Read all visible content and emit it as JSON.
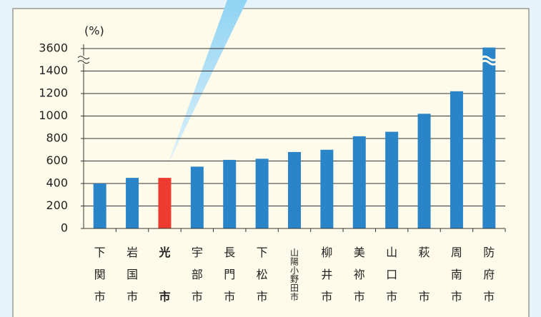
{
  "chart_data": {
    "type": "bar",
    "y_unit": "(%)",
    "categories": [
      "下関市",
      "岩国市",
      "光市",
      "宇部市",
      "長門市",
      "下松市",
      "山陽小野田市",
      "柳井市",
      "美祢市",
      "山口市",
      "萩市",
      "周南市",
      "防府市"
    ],
    "values": [
      400,
      450,
      450,
      550,
      610,
      620,
      680,
      700,
      820,
      860,
      1020,
      1220,
      3700
    ],
    "color": "#2a85c8",
    "colors": [
      "#2a85c8",
      "#2a85c8",
      "#ee3b2f",
      "#2a85c8",
      "#2a85c8",
      "#2a85c8",
      "#2a85c8",
      "#2a85c8",
      "#2a85c8",
      "#2a85c8",
      "#2a85c8",
      "#2a85c8",
      "#2a85c8"
    ],
    "ylim": [
      0,
      3600
    ],
    "yticks": [
      0,
      200,
      400,
      600,
      800,
      1000,
      1200,
      1400,
      3600
    ],
    "grid": true
  }
}
